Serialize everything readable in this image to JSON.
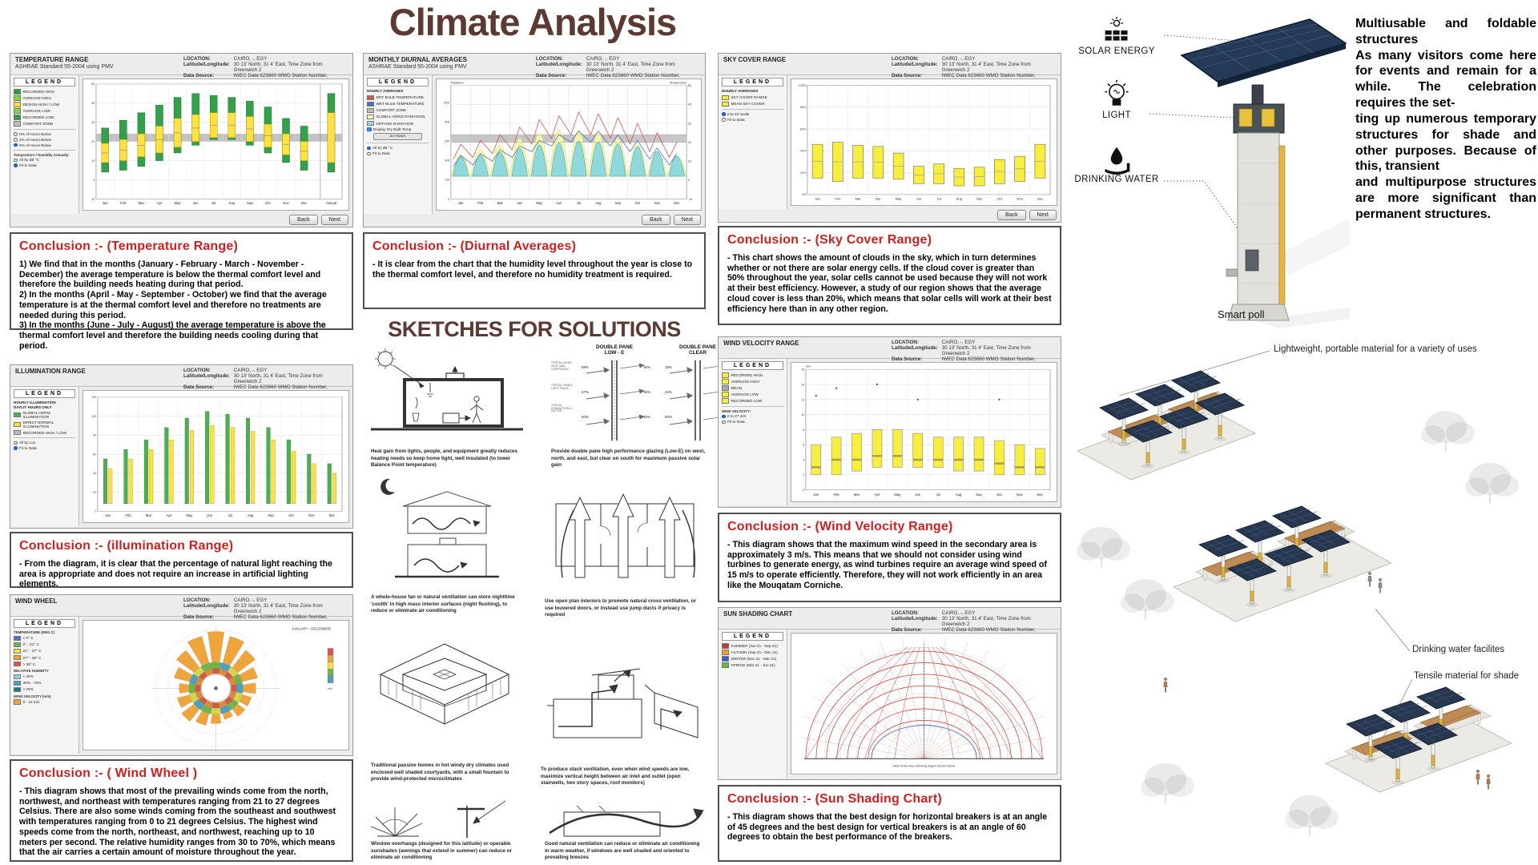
{
  "page_title": "Climate Analysis",
  "sketches_title": "SKETCHES FOR SOLUTIONS",
  "ui": {
    "back": "Back",
    "next": "Next"
  },
  "location": {
    "location_label": "LOCATION:",
    "location_value": "CAIRO, -, EGY",
    "latlon_label": "Latitude/Longitude:",
    "latlon_value": "30 13' North, 31 4' East, Time Zone from Greenwich 2",
    "source_label": "Data Source:",
    "source_value": "IWEC Data  623660 WMO Station Number, Elevation 74 m"
  },
  "months": [
    "Jan",
    "Feb",
    "Mar",
    "Apr",
    "May",
    "Jun",
    "Jul",
    "Aug",
    "Sep",
    "Oct",
    "Nov",
    "Dec"
  ],
  "panels": {
    "temperature": {
      "title": "TEMPERATURE RANGE",
      "subtitle": "ASHRAE Standard 55-2004 using PMV",
      "legend": {
        "title": "LEGEND",
        "groups": [
          {
            "items": [
              {
                "c": "#2e9c46",
                "t": "RECORDED HIGH"
              },
              {
                "c": "#8fcf4a",
                "t": "AVERAGE HIGH"
              },
              {
                "c": "#ffe23e",
                "t": "DESIGN HIGH / LOW"
              },
              {
                "c": "#8fcf4a",
                "t": "AVERAGE LOW"
              },
              {
                "c": "#2e9c46",
                "t": "RECORDED LOW"
              },
              {
                "c": "#bdbdbd",
                "t": "COMFORT ZONE"
              }
            ]
          }
        ],
        "options": [
          "0% of Hours Below",
          "2% of Hours Below",
          "5% of Hours Below"
        ],
        "sel": 2,
        "options2_title": "Temperature / Humidity Annually:",
        "options2": [
          "All by dB °C",
          "Fit to Data"
        ],
        "sel2": 1
      }
    },
    "diurnal": {
      "title": "MONTHLY DIURNAL AVERAGES",
      "subtitle": "ASHRAE Standard 55-2004 using PMV",
      "legend": {
        "title": "LEGEND",
        "note": "HOURLY AVERAGES",
        "groups": [
          {
            "items": [
              {
                "c": "#d9534f",
                "t": "DRY BULB TEMPERATURE"
              },
              {
                "c": "#4a6fd0",
                "t": "WET BULB TEMPERATURE"
              },
              {
                "c": "#bdbdbd",
                "t": "COMFORT ZONE"
              },
              {
                "c": "#f6f6a8",
                "t": "GLOBAL HORIZ RADIATION"
              },
              {
                "c": "#8fd9dc",
                "t": "DIFFUSE RADIATION"
              }
            ]
          }
        ],
        "check": "Display Dry Bulb Temp",
        "button": "24 Hours",
        "options2": [
          "All by dB °C",
          "Fit to Data"
        ],
        "sel2": 0
      }
    },
    "sky": {
      "title": "SKY COVER RANGE",
      "subtitle": "",
      "legend": {
        "title": "LEGEND",
        "note": "HOURLY AVERAGES",
        "groups": [
          {
            "items": [
              {
                "c": "#f8ee3d",
                "t": "SKY COVER RANGE"
              },
              {
                "c": "#f8ee3d",
                "t": "MEAN SKY COVER"
              }
            ]
          }
        ],
        "options2": [
          "0 to 10 Scale",
          "Fit to Data"
        ],
        "sel2": 0
      }
    },
    "illumination": {
      "title": "ILLUMINATION RANGE",
      "subtitle": "",
      "legend": {
        "title": "LEGEND",
        "note": "HOURLY ILLUMINATION\nDAYLIT HOURS ONLY",
        "groups": [
          {
            "items": [
              {
                "c": "#4caf50",
                "t": "GLOBAL HORIZ ILLUMINATION"
              },
              {
                "c": "#ffe23e",
                "t": "DIRECT NORMAL ILLUMINATION"
              },
              {
                "c": "#bdbdbd",
                "t": "RECORDED HIGH / LOW"
              }
            ]
          }
        ],
        "options2": [
          "All by Lux",
          "Fit to Data"
        ],
        "sel2": 1
      }
    },
    "wind_wheel": {
      "title": "WIND WHEEL",
      "subtitle": "",
      "legend": {
        "title": "LEGEND",
        "groups": [
          {
            "title": "TEMPERATURE (DEG C)",
            "items": [
              {
                "c": "#4a6fd0",
                "t": "< 0° C"
              },
              {
                "c": "#6fb54a",
                "t": "0° - 21° C"
              },
              {
                "c": "#ffe23e",
                "t": "21° - 27° C"
              },
              {
                "c": "#f0a43c",
                "t": "27° - 38° C"
              },
              {
                "c": "#d9534f",
                "t": "> 38° C"
              }
            ]
          },
          {
            "title": "RELATIVE HUMIDITY",
            "items": [
              {
                "c": "#9ad0e0",
                "t": "< 30%"
              },
              {
                "c": "#49a0c4",
                "t": "30% - 70%"
              },
              {
                "c": "#2b6f8a",
                "t": "> 70%"
              }
            ]
          },
          {
            "title": "WIND VELOCITY (m/s)",
            "items": [
              {
                "c": "#f0a43c",
                "t": "0 - 10 m/s"
              }
            ]
          }
        ]
      }
    },
    "wind_velocity": {
      "title": "WIND VELOCITY RANGE",
      "subtitle": "",
      "legend": {
        "title": "LEGEND",
        "groups": [
          {
            "items": [
              {
                "c": "#f8ee3d",
                "t": "RECORDED HIGH"
              },
              {
                "c": "#f8ee3d",
                "t": "AVERAGE HIGH"
              },
              {
                "c": "#a9a9a9",
                "t": "MEAN"
              },
              {
                "c": "#f8ee3d",
                "t": "AVERAGE LOW"
              },
              {
                "c": "#f8ee3d",
                "t": "RECORDED LOW"
              }
            ]
          }
        ],
        "options2_title": "WIND VELOCITY:",
        "options2": [
          "0 to 27 m/s",
          "Fit to Data"
        ],
        "sel2": 0
      }
    },
    "sun_shading": {
      "title": "SUN SHADING CHART",
      "subtitle": "",
      "legend": {
        "title": "LEGEND",
        "groups": [
          {
            "items": [
              {
                "c": "#c23b2e",
                "t": "SUMMER (Jun 21 - Sep 21)"
              },
              {
                "c": "#e8a33a",
                "t": "AUTUMN (Sep 21 - Dec 21)"
              },
              {
                "c": "#3a5fc0",
                "t": "WINTER (Dec 21 - Mar 21)"
              },
              {
                "c": "#6fb54a",
                "t": "SPRING (Mar 21 - Jun 21)"
              }
            ]
          }
        ]
      }
    }
  },
  "conclusions": {
    "temperature": {
      "heading": "Conclusion :- (Temperature Range)",
      "body": "1) We find that in the months (January - February - March - November - December) the average temperature is below the thermal comfort level and therefore the building needs heating during that period.\n2) In the months (April - May - September - October) we find that the average temperature is at the thermal comfort level and therefore no treatments are needed during this period.\n3) In the months (June - July - August) the average temperature is above the thermal comfort level and therefore the building needs cooling during that period."
    },
    "diurnal": {
      "heading": "Conclusion :- (Diurnal Averages)",
      "body": "- It is clear from the chart that the humidity level throughout the year is close to the thermal comfort level, and therefore no humidity treatment is required."
    },
    "sky": {
      "heading": "Conclusion :- (Sky Cover Range)",
      "body": "- This chart shows the amount of clouds in the sky, which in turn determines whether or not there are solar energy cells. If the cloud cover is greater than 50% throughout the year, solar cells cannot be used because they will not work at their best efficiency. However, a study of our region shows that the average cloud cover is less than 20%, which means that solar cells will work at their best efficiency here than in any other region."
    },
    "illumination": {
      "heading": "Conclusion :- (illumination  Range)",
      "body": "- From the diagram, it is clear that the percentage of natural light reaching the area is appropriate and does not require an increase in artificial lighting elements."
    },
    "wind_wheel": {
      "heading": "Conclusion :- ( Wind Wheel )",
      "body": "- This diagram shows that most of the prevailing winds come from the north, northwest, and northeast with temperatures ranging from 21 to 27 degrees Celsius. There are also some winds coming from the southeast and southwest with temperatures ranging from 0 to 21 degrees Celsius. The highest wind speeds come from the north, northeast, and northwest, reaching up to 10 meters per second. The relative humidity ranges from 30 to 70%, which means that the air carries a certain amount of moisture throughout the year."
    },
    "wind_velocity": {
      "heading": "Conclusion :- (Wind Velocity Range)",
      "body": "- This diagram shows that the maximum wind speed in the secondary area is approximately 3 m/s.  This means that we should not consider using wind turbines to generate energy, as wind turbines require an average wind speed of 15 m/s to operate efficiently.  Therefore, they will not work efficiently in an area like the Mouqatam Corniche."
    },
    "sun_shading": {
      "heading": "Conclusion :- (Sun Shading Chart)",
      "body": "- This diagram shows that the best design for horizontal breakers is at an angle of 45 degrees and the best design for vertical breakers is at an angle of 60 degrees to obtain the best performance of the breakers."
    }
  },
  "sketches": {
    "pane_lowe_title": "DOUBLE PANE\nLOW - E",
    "pane_clear_title": "DOUBLE PANE\nCLEAR",
    "pane_labels": [
      "TYPICAL SOLAR HEAT GAIN COEFFICIENT",
      "TYPICAL VISIBLE LIGHT TRANS",
      "TYPICAL CONDUCTION U - FACTOR"
    ],
    "pane_lowe_left": [
      "88%",
      "57%",
      "50%"
    ],
    "pane_lowe_right": [
      "40%",
      "46%",
      "16%"
    ],
    "pane_clear_left": [
      "18%",
      "43%",
      "50%"
    ],
    "pane_clear_right": [
      "82%",
      "57%",
      "42%"
    ],
    "captions": {
      "heat_gain": "Heat gain from lights, people, and equipment greatly reduces heating needs so keep home tight, well insulated (to lower Balance Point temperature)",
      "double_pane": "Provide double pane high performance glazing (Low-E) on west, north, and east, but clear on south for maximum passive solar gain",
      "night_flush": "A whole-house fan or natural ventilation can store nighttime 'coolth' in high mass interior surfaces (night flushing), to reduce or eliminate air conditioning",
      "open_plan": "Use open plan interiors to promote natural cross ventilation, or use louvered doors, or instead use jump ducts if privacy is required",
      "courtyard": "Traditional passive homes in hot windy dry climates used enclosed well shaded courtyards, with a small fountain to provide wind-protected microclimates",
      "stack_vent": "To produce stack ventilation, even when wind speeds are low, maximize vertical height between air inlet and outlet (open stairwells, two story spaces, roof monitors)",
      "overhangs": "Window overhangs (designed for this latitude) or operable sunshades (awnings that extend in summer) can reduce or eliminate air conditioning",
      "breezes": "Good natural ventilation can reduce or eliminate air conditioning in warm weather, if windows are well shaded and oriented to prevailing breezes"
    }
  },
  "right_panel": {
    "icons": [
      {
        "label": "SOLAR ENERGY"
      },
      {
        "label": "LIGHT"
      },
      {
        "label": "DRINKING WATER"
      }
    ],
    "smart_poll_label": "Smart poll",
    "paragraph": "Multiusable and foldable structures\nAs many visitors come here for events and remain for a while. The celebration requires the set-\nting up numerous temporary structures for shade and other purposes. Because of this, transient\nand multipurpose structures are more significant than permanent structures.",
    "labels": {
      "lightweight": "Lightweight, portable material for a variety of uses",
      "drinking": "Drinking water facilites",
      "tensile": "Tensile material for shade"
    }
  },
  "chart_data": [
    {
      "key": "temperature",
      "type": "bar",
      "title": "TEMPERATURE RANGE",
      "ylabel": "°C",
      "ylim": [
        -10,
        50
      ],
      "comfort_zone": [
        20,
        24
      ],
      "annual_label": "Annual",
      "categories": [
        "Jan",
        "Feb",
        "Mar",
        "Apr",
        "May",
        "Jun",
        "Jul",
        "Aug",
        "Sep",
        "Oct",
        "Nov",
        "Dec"
      ],
      "series": [
        {
          "name": "recorded extremes",
          "color": "#33a04a",
          "low": [
            4,
            5,
            7,
            10,
            14,
            18,
            21,
            21,
            18,
            14,
            9,
            5
          ],
          "high": [
            27,
            31,
            35,
            39,
            43,
            45,
            44,
            43,
            41,
            38,
            32,
            28
          ]
        },
        {
          "name": "design range",
          "color": "#ffe23e",
          "low": [
            9,
            10,
            12,
            14,
            17,
            20,
            22,
            22,
            20,
            17,
            13,
            10
          ],
          "high": [
            19,
            21,
            24,
            28,
            32,
            34,
            35,
            35,
            33,
            29,
            24,
            20
          ]
        }
      ]
    },
    {
      "key": "diurnal",
      "type": "area",
      "title": "MONTHLY DIURNAL AVERAGES",
      "ylim": [
        -10,
        50
      ],
      "comfort_zone": [
        20,
        24
      ],
      "left_axis_label": "Radiation",
      "right_axis_label": "Temperature",
      "categories": [
        "Jan",
        "Feb",
        "Mar",
        "Apr",
        "May",
        "Jun",
        "Jul",
        "Aug",
        "Sep",
        "Oct",
        "Nov",
        "Dec"
      ],
      "temp_peak": [
        19,
        21,
        24,
        28,
        32,
        34,
        36,
        35,
        33,
        30,
        25,
        20
      ],
      "temp_min": [
        9,
        10,
        12,
        14,
        17,
        20,
        22,
        22,
        20,
        17,
        13,
        10
      ],
      "radiation_peak_frac": [
        0.45,
        0.55,
        0.65,
        0.78,
        0.88,
        0.97,
        0.95,
        0.9,
        0.8,
        0.65,
        0.5,
        0.42
      ]
    },
    {
      "key": "sky",
      "type": "bar",
      "title": "SKY COVER RANGE",
      "ylabel": "%",
      "ylim": [
        0,
        100
      ],
      "categories": [
        "Jan",
        "Feb",
        "Mar",
        "Apr",
        "May",
        "Jun",
        "Jul",
        "Aug",
        "Sep",
        "Oct",
        "Nov",
        "Dec"
      ],
      "low": [
        15,
        12,
        15,
        15,
        14,
        10,
        10,
        8,
        8,
        10,
        12,
        15
      ],
      "high": [
        46,
        48,
        45,
        44,
        38,
        26,
        28,
        24,
        25,
        32,
        35,
        46
      ]
    },
    {
      "key": "illumination",
      "type": "bar",
      "title": "ILLUMINATION RANGE",
      "ylim": [
        0,
        120
      ],
      "base": 8,
      "categories": [
        "Jan",
        "Feb",
        "Mar",
        "Apr",
        "May",
        "Jun",
        "Jul",
        "Aug",
        "Sep",
        "Oct",
        "Nov",
        "Dec"
      ],
      "series": [
        {
          "name": "global horiz illumination",
          "color": "#4caf50",
          "values": [
            55,
            65,
            75,
            88,
            98,
            105,
            102,
            98,
            88,
            75,
            60,
            50
          ]
        },
        {
          "name": "direct normal illumination",
          "color": "#ffe23e",
          "values": [
            45,
            55,
            65,
            75,
            85,
            90,
            88,
            84,
            75,
            63,
            50,
            40
          ]
        }
      ]
    },
    {
      "key": "wind_wheel",
      "type": "polar",
      "title": "WIND WHEEL",
      "caption": "JANUARY - DECEMBER",
      "directions": 16,
      "max_velocity_ms": 10,
      "velocity": [
        10,
        9,
        7,
        5,
        4,
        3,
        3,
        2,
        3,
        4,
        5,
        4,
        3,
        5,
        7,
        9
      ]
    },
    {
      "key": "wind_velocity",
      "type": "boxplot",
      "title": "WIND VELOCITY RANGE",
      "ylabel": "m/s",
      "ylim": [
        0,
        16
      ],
      "categories": [
        "Jan",
        "Feb",
        "Mar",
        "Apr",
        "May",
        "Jun",
        "Jul",
        "Aug",
        "Sep",
        "Oct",
        "Nov",
        "Dec"
      ],
      "low": [
        2,
        2,
        2.5,
        3,
        3,
        3,
        3,
        2.5,
        2.5,
        2,
        2,
        2
      ],
      "high": [
        6,
        7,
        7.5,
        8,
        8,
        7.5,
        7,
        7,
        7,
        6.5,
        6,
        5.5
      ],
      "median": [
        3,
        4,
        4,
        4.5,
        4.5,
        4,
        4,
        4,
        4,
        3.5,
        3,
        3
      ],
      "outliers": [
        12.5,
        13.5,
        null,
        14,
        null,
        12,
        null,
        null,
        null,
        12,
        null,
        null
      ]
    },
    {
      "key": "sun_shading",
      "type": "sunpath",
      "title": "SUN SHADING CHART",
      "max_altitude_deg": 83,
      "min_altitude_deg": 30,
      "arc_count": 7
    }
  ]
}
